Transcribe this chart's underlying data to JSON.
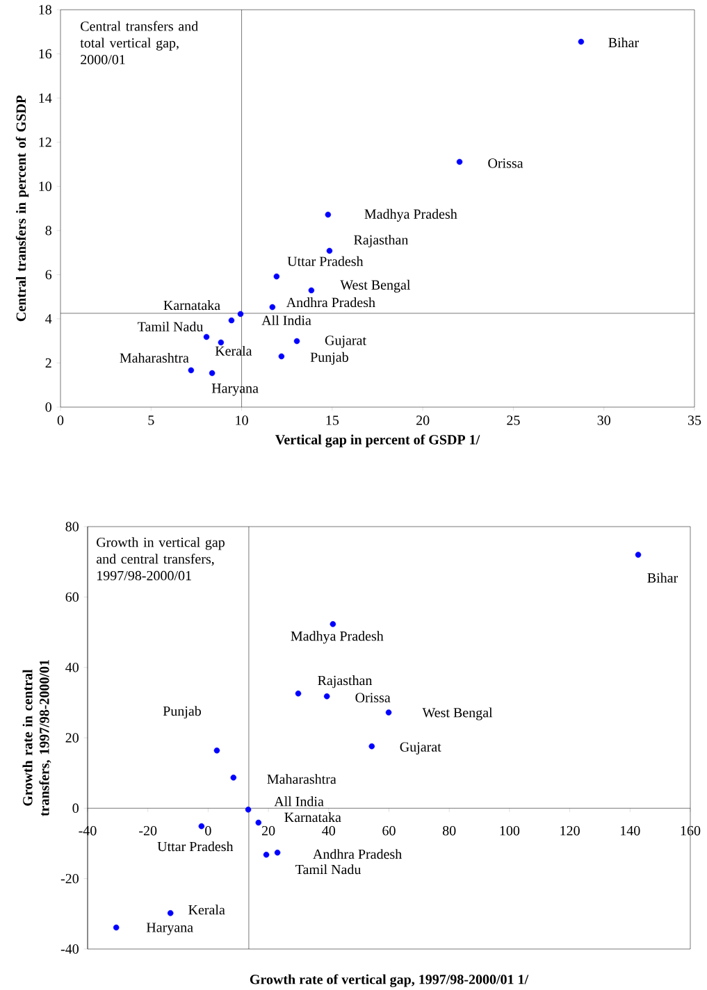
{
  "chart_data": [
    {
      "type": "scatter",
      "title": "Central transfers and total vertical gap, 2000/01",
      "xlabel": "Vertical gap in percent of GSDP 1/",
      "ylabel": "Central transfers in percent of GSDP",
      "x": [
        28.74,
        22.03,
        14.77,
        14.85,
        11.93,
        13.85,
        11.7,
        9.94,
        9.44,
        8.06,
        8.86,
        13.05,
        12.2,
        7.21,
        8.37
      ],
      "series": [
        {
          "color": "#0000ff",
          "values": [
            16.55,
            11.11,
            8.72,
            7.08,
            5.92,
            5.29,
            4.53,
            4.22,
            3.93,
            3.18,
            2.93,
            2.99,
            2.3,
            1.67,
            1.54
          ]
        }
      ],
      "xlim": [
        0,
        35
      ],
      "xticks": [
        0,
        5,
        10,
        15,
        20,
        25,
        30,
        35
      ],
      "ylim": [
        0,
        18
      ],
      "yticks": [
        0,
        2,
        4,
        6,
        8,
        10,
        12,
        14,
        16,
        18
      ],
      "ref_lines": [
        {
          "axis": "x",
          "value": 10.0,
          "color": "#000000"
        },
        {
          "axis": "y",
          "value": 4.25,
          "color": "#000000"
        }
      ],
      "annotations": [
        {
          "text": "Bihar",
          "x": 28.74,
          "y": 16.55
        },
        {
          "text": "Orissa",
          "x": 22.03,
          "y": 11.11
        },
        {
          "text": "Madhya Pradesh",
          "x": 14.77,
          "y": 8.72
        },
        {
          "text": "Rajasthan",
          "x": 14.85,
          "y": 7.08
        },
        {
          "text": "Uttar Pradesh",
          "x": 11.93,
          "y": 5.92
        },
        {
          "text": "West Bengal",
          "x": 13.85,
          "y": 5.29
        },
        {
          "text": "Andhra Pradesh",
          "x": 11.7,
          "y": 4.53
        },
        {
          "text": "All India",
          "x": 9.94,
          "y": 4.22
        },
        {
          "text": "Karnataka",
          "x": 9.44,
          "y": 3.93
        },
        {
          "text": "Tamil Nadu",
          "x": 8.06,
          "y": 3.18
        },
        {
          "text": "Kerala",
          "x": 8.86,
          "y": 2.93
        },
        {
          "text": "Gujarat",
          "x": 13.05,
          "y": 2.99
        },
        {
          "text": "Punjab",
          "x": 12.2,
          "y": 2.3
        },
        {
          "text": "Maharashtra",
          "x": 7.21,
          "y": 1.67
        },
        {
          "text": "Haryana",
          "x": 8.37,
          "y": 1.54
        }
      ]
    },
    {
      "type": "scatter",
      "title": "Growth in vertical gap and central transfers, 1997/98-2000/01",
      "xlabel": "Growth rate of vertical gap, 1997/98-2000/01  1/",
      "ylabel": "Growth rate in central transfers, 1997/98-2000/01",
      "x": [
        142.7,
        41.4,
        29.9,
        39.4,
        59.9,
        54.3,
        2.9,
        8.4,
        13.3,
        16.7,
        -2.2,
        23.0,
        19.3,
        -12.5,
        -30.5
      ],
      "series": [
        {
          "color": "#0000ff",
          "values": [
            72.0,
            52.3,
            32.6,
            31.8,
            27.2,
            17.6,
            16.4,
            8.7,
            -0.4,
            -4.1,
            -5.1,
            -12.6,
            -13.2,
            -29.8,
            -33.9
          ]
        }
      ],
      "xlim": [
        -40,
        160
      ],
      "xticks": [
        -40,
        -20,
        0,
        20,
        40,
        60,
        80,
        100,
        120,
        140,
        160
      ],
      "ylim": [
        -40,
        80
      ],
      "yticks": [
        -40,
        -20,
        0,
        20,
        40,
        60,
        80
      ],
      "ref_lines": [
        {
          "axis": "x",
          "value": 13.5,
          "color": "#000000"
        }
      ],
      "annotations": [
        {
          "text": "Bihar",
          "x": 142.7,
          "y": 72.0
        },
        {
          "text": "Madhya Pradesh",
          "x": 41.4,
          "y": 52.3
        },
        {
          "text": "Rajasthan",
          "x": 29.9,
          "y": 32.6
        },
        {
          "text": "Orissa",
          "x": 39.4,
          "y": 31.8
        },
        {
          "text": "West Bengal",
          "x": 59.9,
          "y": 27.2
        },
        {
          "text": "Gujarat",
          "x": 54.3,
          "y": 17.6
        },
        {
          "text": "Punjab",
          "x": 2.9,
          "y": 16.4
        },
        {
          "text": "Maharashtra",
          "x": 8.4,
          "y": 8.7
        },
        {
          "text": "All India",
          "x": 13.3,
          "y": -0.4
        },
        {
          "text": "Karnataka",
          "x": 16.7,
          "y": -4.1
        },
        {
          "text": "Uttar Pradesh",
          "x": -2.2,
          "y": -5.1
        },
        {
          "text": "Andhra Pradesh",
          "x": 23.0,
          "y": -12.6
        },
        {
          "text": "Tamil Nadu",
          "x": 19.3,
          "y": -13.2
        },
        {
          "text": "Kerala",
          "x": -12.5,
          "y": -29.8
        },
        {
          "text": "Haryana",
          "x": -30.5,
          "y": -33.9
        }
      ]
    }
  ]
}
